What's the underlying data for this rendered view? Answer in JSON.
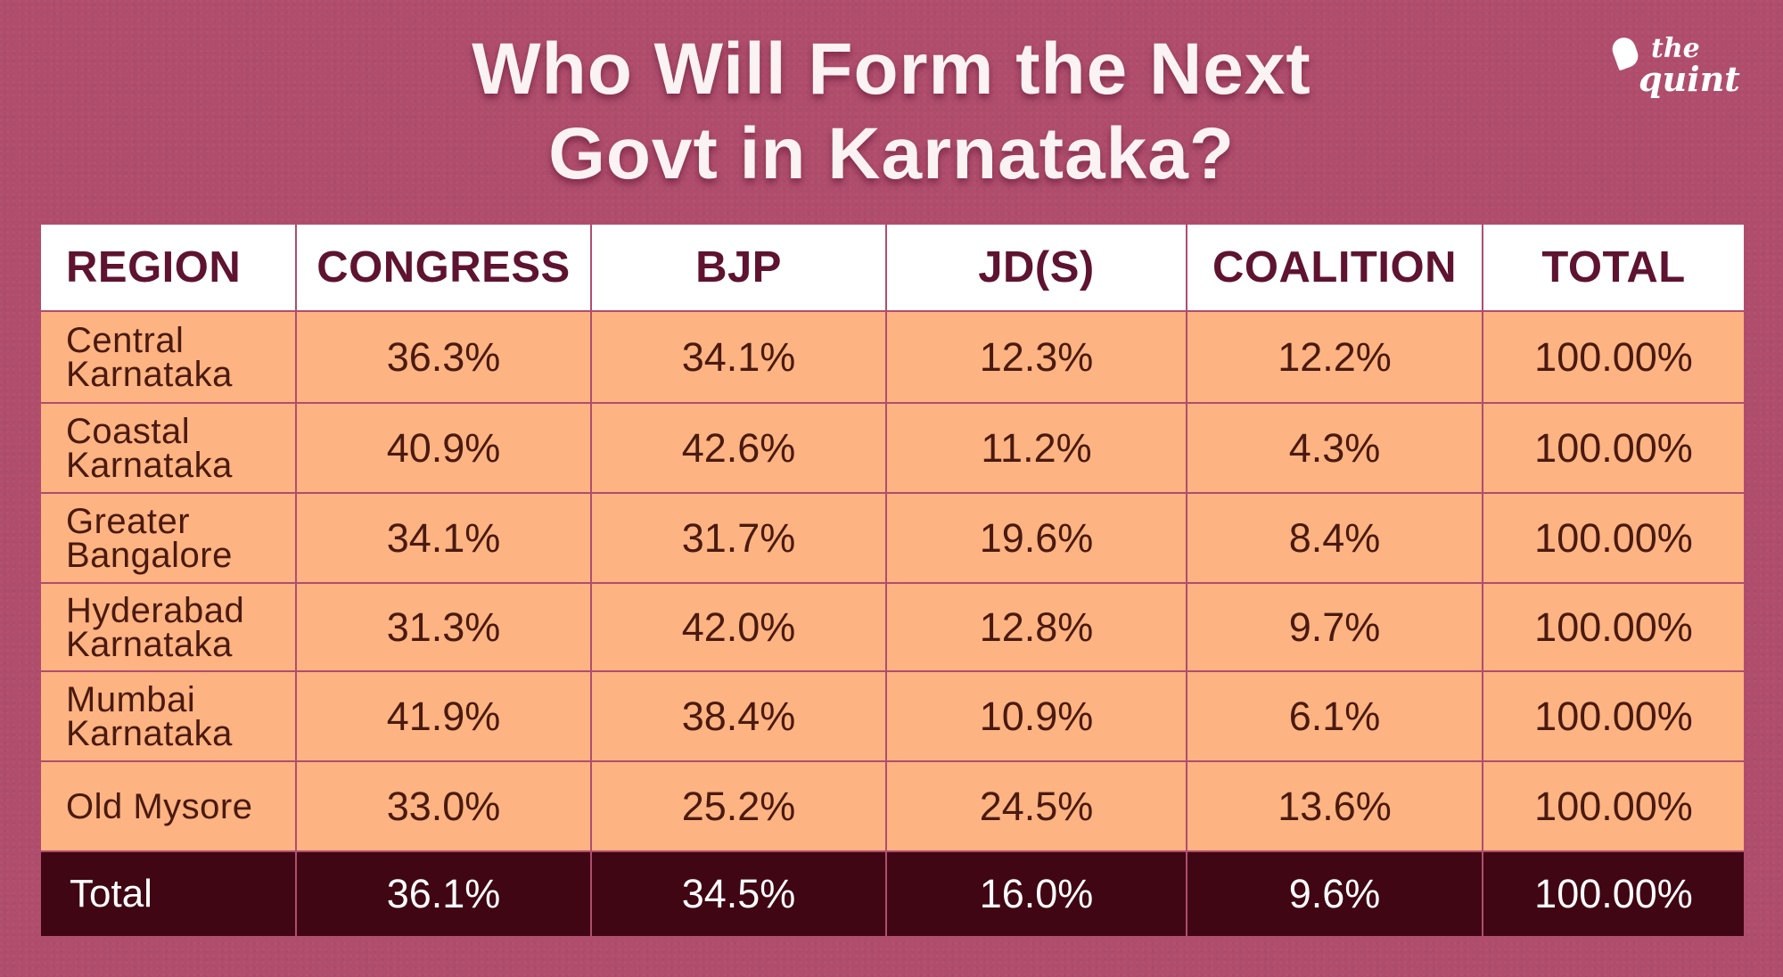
{
  "chart_data": {
    "type": "table",
    "title_lines": [
      "Who Will Form the Next",
      "Govt in Karnataka?"
    ],
    "columns": [
      "REGION",
      "CONGRESS",
      "BJP",
      "JD(S)",
      "COALITION",
      "TOTAL"
    ],
    "rows": [
      {
        "region_lines": [
          "Central",
          "Karnataka"
        ],
        "values": [
          "36.3%",
          "34.1%",
          "12.3%",
          "12.2%",
          "100.00%"
        ]
      },
      {
        "region_lines": [
          "Coastal",
          "Karnataka"
        ],
        "values": [
          "40.9%",
          "42.6%",
          "11.2%",
          "4.3%",
          "100.00%"
        ]
      },
      {
        "region_lines": [
          "Greater",
          "Bangalore"
        ],
        "values": [
          "34.1%",
          "31.7%",
          "19.6%",
          "8.4%",
          "100.00%"
        ]
      },
      {
        "region_lines": [
          "Hyderabad",
          "Karnataka"
        ],
        "values": [
          "31.3%",
          "42.0%",
          "12.8%",
          "9.7%",
          "100.00%"
        ]
      },
      {
        "region_lines": [
          "Mumbai",
          "Karnataka"
        ],
        "values": [
          "41.9%",
          "38.4%",
          "10.9%",
          "6.1%",
          "100.00%"
        ]
      },
      {
        "region_lines": [
          "Old Mysore"
        ],
        "values": [
          "33.0%",
          "25.2%",
          "24.5%",
          "13.6%",
          "100.00%"
        ]
      }
    ],
    "total_row": {
      "label": "Total",
      "values": [
        "36.1%",
        "34.5%",
        "16.0%",
        "9.6%",
        "100.00%"
      ]
    }
  },
  "logo": {
    "line1": "the",
    "line2": "quint"
  },
  "colors": {
    "background": "#b04d6d",
    "header_bg": "#ffffff",
    "header_text": "#5e1330",
    "row_bg": "#fdb382",
    "row_text": "#4a1a10",
    "total_bg": "#400614",
    "total_text": "#ffffff"
  }
}
